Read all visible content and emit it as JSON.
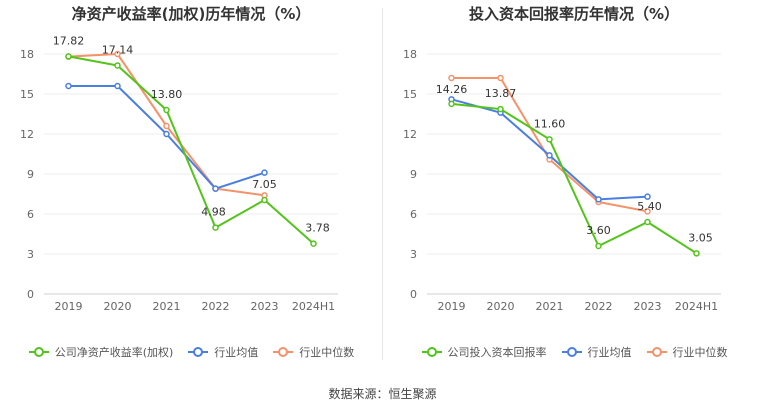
{
  "source_text": "数据来源：恒生聚源",
  "chart_data": [
    {
      "type": "line",
      "title": "净资产收益率(加权)历年情况（%）",
      "categories": [
        "2019",
        "2020",
        "2021",
        "2022",
        "2023",
        "2024H1"
      ],
      "ylim": [
        0,
        18
      ],
      "yticks": [
        0,
        3,
        6,
        9,
        12,
        15,
        18
      ],
      "grid": true,
      "legend_position": "bottom",
      "series": [
        {
          "name": "公司净资产收益率(加权)",
          "color": "#52c41a",
          "values": [
            17.82,
            17.14,
            13.8,
            4.98,
            7.05,
            3.78
          ],
          "labels": [
            "17.82",
            "17.14",
            "13.80",
            "4.98",
            "7.05",
            "3.78"
          ]
        },
        {
          "name": "行业均值",
          "color": "#4a7ee0",
          "values": [
            15.6,
            15.6,
            12.0,
            7.9,
            9.1,
            null
          ],
          "labels": []
        },
        {
          "name": "行业中位数",
          "color": "#f4926a",
          "values": [
            17.8,
            18.0,
            12.6,
            7.9,
            7.4,
            null
          ],
          "labels": []
        }
      ]
    },
    {
      "type": "line",
      "title": "投入资本回报率历年情况（%）",
      "categories": [
        "2019",
        "2020",
        "2021",
        "2022",
        "2023",
        "2024H1"
      ],
      "ylim": [
        0,
        18
      ],
      "yticks": [
        0,
        3,
        6,
        9,
        12,
        15,
        18
      ],
      "grid": true,
      "legend_position": "bottom",
      "series": [
        {
          "name": "公司投入资本回报率",
          "color": "#52c41a",
          "values": [
            14.26,
            13.87,
            11.6,
            3.6,
            5.4,
            3.05
          ],
          "labels": [
            "14.26",
            "13.87",
            "11.60",
            "3.60",
            "5.40",
            "3.05"
          ]
        },
        {
          "name": "行业均值",
          "color": "#4a7ee0",
          "values": [
            14.6,
            13.6,
            10.4,
            7.1,
            7.3,
            null
          ],
          "labels": []
        },
        {
          "name": "行业中位数",
          "color": "#f4926a",
          "values": [
            16.2,
            16.2,
            10.1,
            6.9,
            6.2,
            null
          ],
          "labels": []
        }
      ]
    }
  ]
}
